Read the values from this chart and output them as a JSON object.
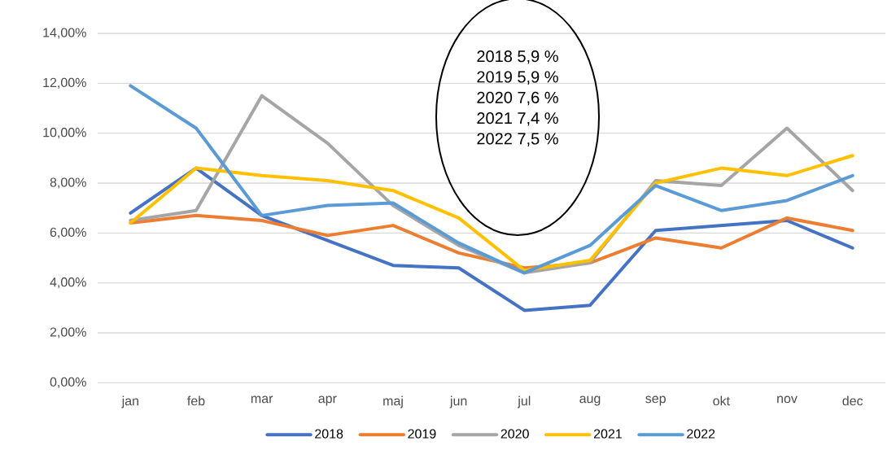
{
  "chart_data": {
    "type": "line",
    "categories": [
      "jan",
      "feb",
      "mar",
      "apr",
      "maj",
      "jun",
      "jul",
      "aug",
      "sep",
      "okt",
      "nov",
      "dec"
    ],
    "series": [
      {
        "name": "2018",
        "color": "#4472c4",
        "values": [
          6.8,
          8.6,
          6.7,
          5.7,
          4.7,
          4.6,
          2.9,
          3.1,
          6.1,
          6.3,
          6.5,
          5.4
        ]
      },
      {
        "name": "2019",
        "color": "#ed7d31",
        "values": [
          6.4,
          6.7,
          6.5,
          5.9,
          6.3,
          5.2,
          4.6,
          4.8,
          5.8,
          5.4,
          6.6,
          6.1
        ]
      },
      {
        "name": "2020",
        "color": "#a5a5a5",
        "values": [
          6.5,
          6.9,
          11.5,
          9.6,
          7.1,
          5.5,
          4.4,
          4.8,
          8.1,
          7.9,
          10.2,
          7.7
        ]
      },
      {
        "name": "2021",
        "color": "#ffc000",
        "values": [
          6.4,
          8.6,
          8.3,
          8.1,
          7.7,
          6.6,
          4.5,
          4.9,
          8.0,
          8.6,
          8.3,
          9.1
        ]
      },
      {
        "name": "2022",
        "color": "#5b9bd5",
        "values": [
          11.9,
          10.2,
          6.7,
          7.1,
          7.2,
          5.6,
          4.4,
          5.5,
          7.9,
          6.9,
          7.3,
          8.3
        ]
      }
    ],
    "ylim": [
      0,
      14
    ],
    "yticks": [
      {
        "value": 0,
        "label": "0,00%"
      },
      {
        "value": 2,
        "label": "2,00%"
      },
      {
        "value": 4,
        "label": "4,00%"
      },
      {
        "value": 6,
        "label": "6,00%"
      },
      {
        "value": 8,
        "label": "8,00%"
      },
      {
        "value": 10,
        "label": "10,00%"
      },
      {
        "value": 12,
        "label": "12,00%"
      },
      {
        "value": 14,
        "label": "14,00%"
      }
    ],
    "grid": "y",
    "legend": "bottom",
    "marker": "none",
    "line_style": "solid",
    "annotations": [
      "2018 5,9 %",
      "2019 5,9 %",
      "2020 7,6 %",
      "2021 7,4 %",
      "2022 7,5 %"
    ]
  }
}
